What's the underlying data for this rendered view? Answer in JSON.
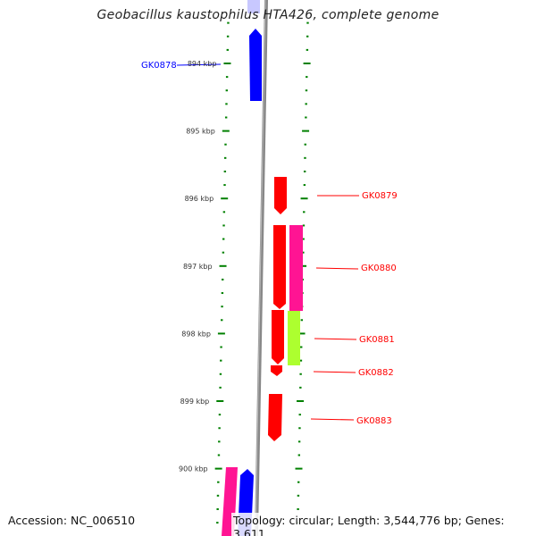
{
  "title": "Geobacillus kaustophilus HTA426, complete genome",
  "footer": {
    "accession": "Accession: NC_006510",
    "summary": "Topology: circular; Length: 3,544,776 bp; Genes: 3,611"
  },
  "ruler": {
    "labels": [
      "894 kbp",
      "895 kbp",
      "896 kbp",
      "897 kbp",
      "898 kbp",
      "899 kbp",
      "900 kbp"
    ]
  },
  "genes": [
    {
      "label": "GK0878",
      "strand": "forward",
      "color": "#0000ff"
    },
    {
      "label": "GK0879",
      "strand": "reverse",
      "color": "#ff0000"
    },
    {
      "label": "GK0880",
      "strand": "reverse",
      "color": "#ff0000"
    },
    {
      "label": "GK0881",
      "strand": "reverse",
      "color": "#ff0000"
    },
    {
      "label": "GK0882",
      "strand": "reverse",
      "color": "#ff0000"
    },
    {
      "label": "GK0883",
      "strand": "reverse",
      "color": "#ff0000"
    }
  ],
  "colors": {
    "forward": "#0000ff",
    "reverse": "#ff0000",
    "feature_pink": "#ff1493",
    "feature_green": "#adff2f",
    "tick": "#008000",
    "backbone": "#888888"
  }
}
